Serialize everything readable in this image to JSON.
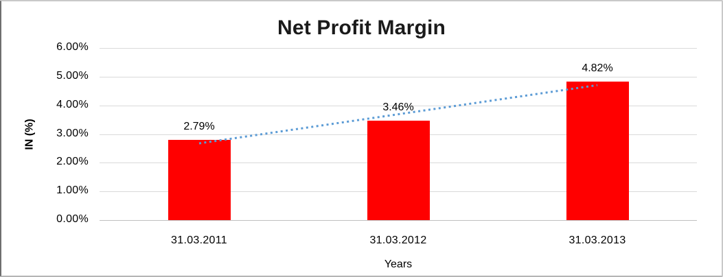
{
  "chart_data": {
    "type": "bar",
    "title": "Net Profit Margin",
    "categories": [
      "31.03.2011",
      "31.03.2012",
      "31.03.2013"
    ],
    "values": [
      2.79,
      3.46,
      4.82
    ],
    "data_labels": [
      "2.79%",
      "3.46%",
      "4.82%"
    ],
    "xlabel": "Years",
    "ylabel": "IN (%)",
    "ylim": [
      0,
      6
    ],
    "ytick_step": 1,
    "ytick_labels": [
      "0.00%",
      "1.00%",
      "2.00%",
      "3.00%",
      "4.00%",
      "5.00%",
      "6.00%"
    ],
    "grid": true,
    "legend": "none",
    "bar_color": "#ff0000",
    "gridline_color": "#d9d9d9",
    "axis_line_color": "#bfbfbf",
    "trendline": {
      "type": "linear",
      "style": "dotted",
      "color": "#5b9bd5",
      "start_value": 2.675,
      "end_value": 4.705
    }
  }
}
